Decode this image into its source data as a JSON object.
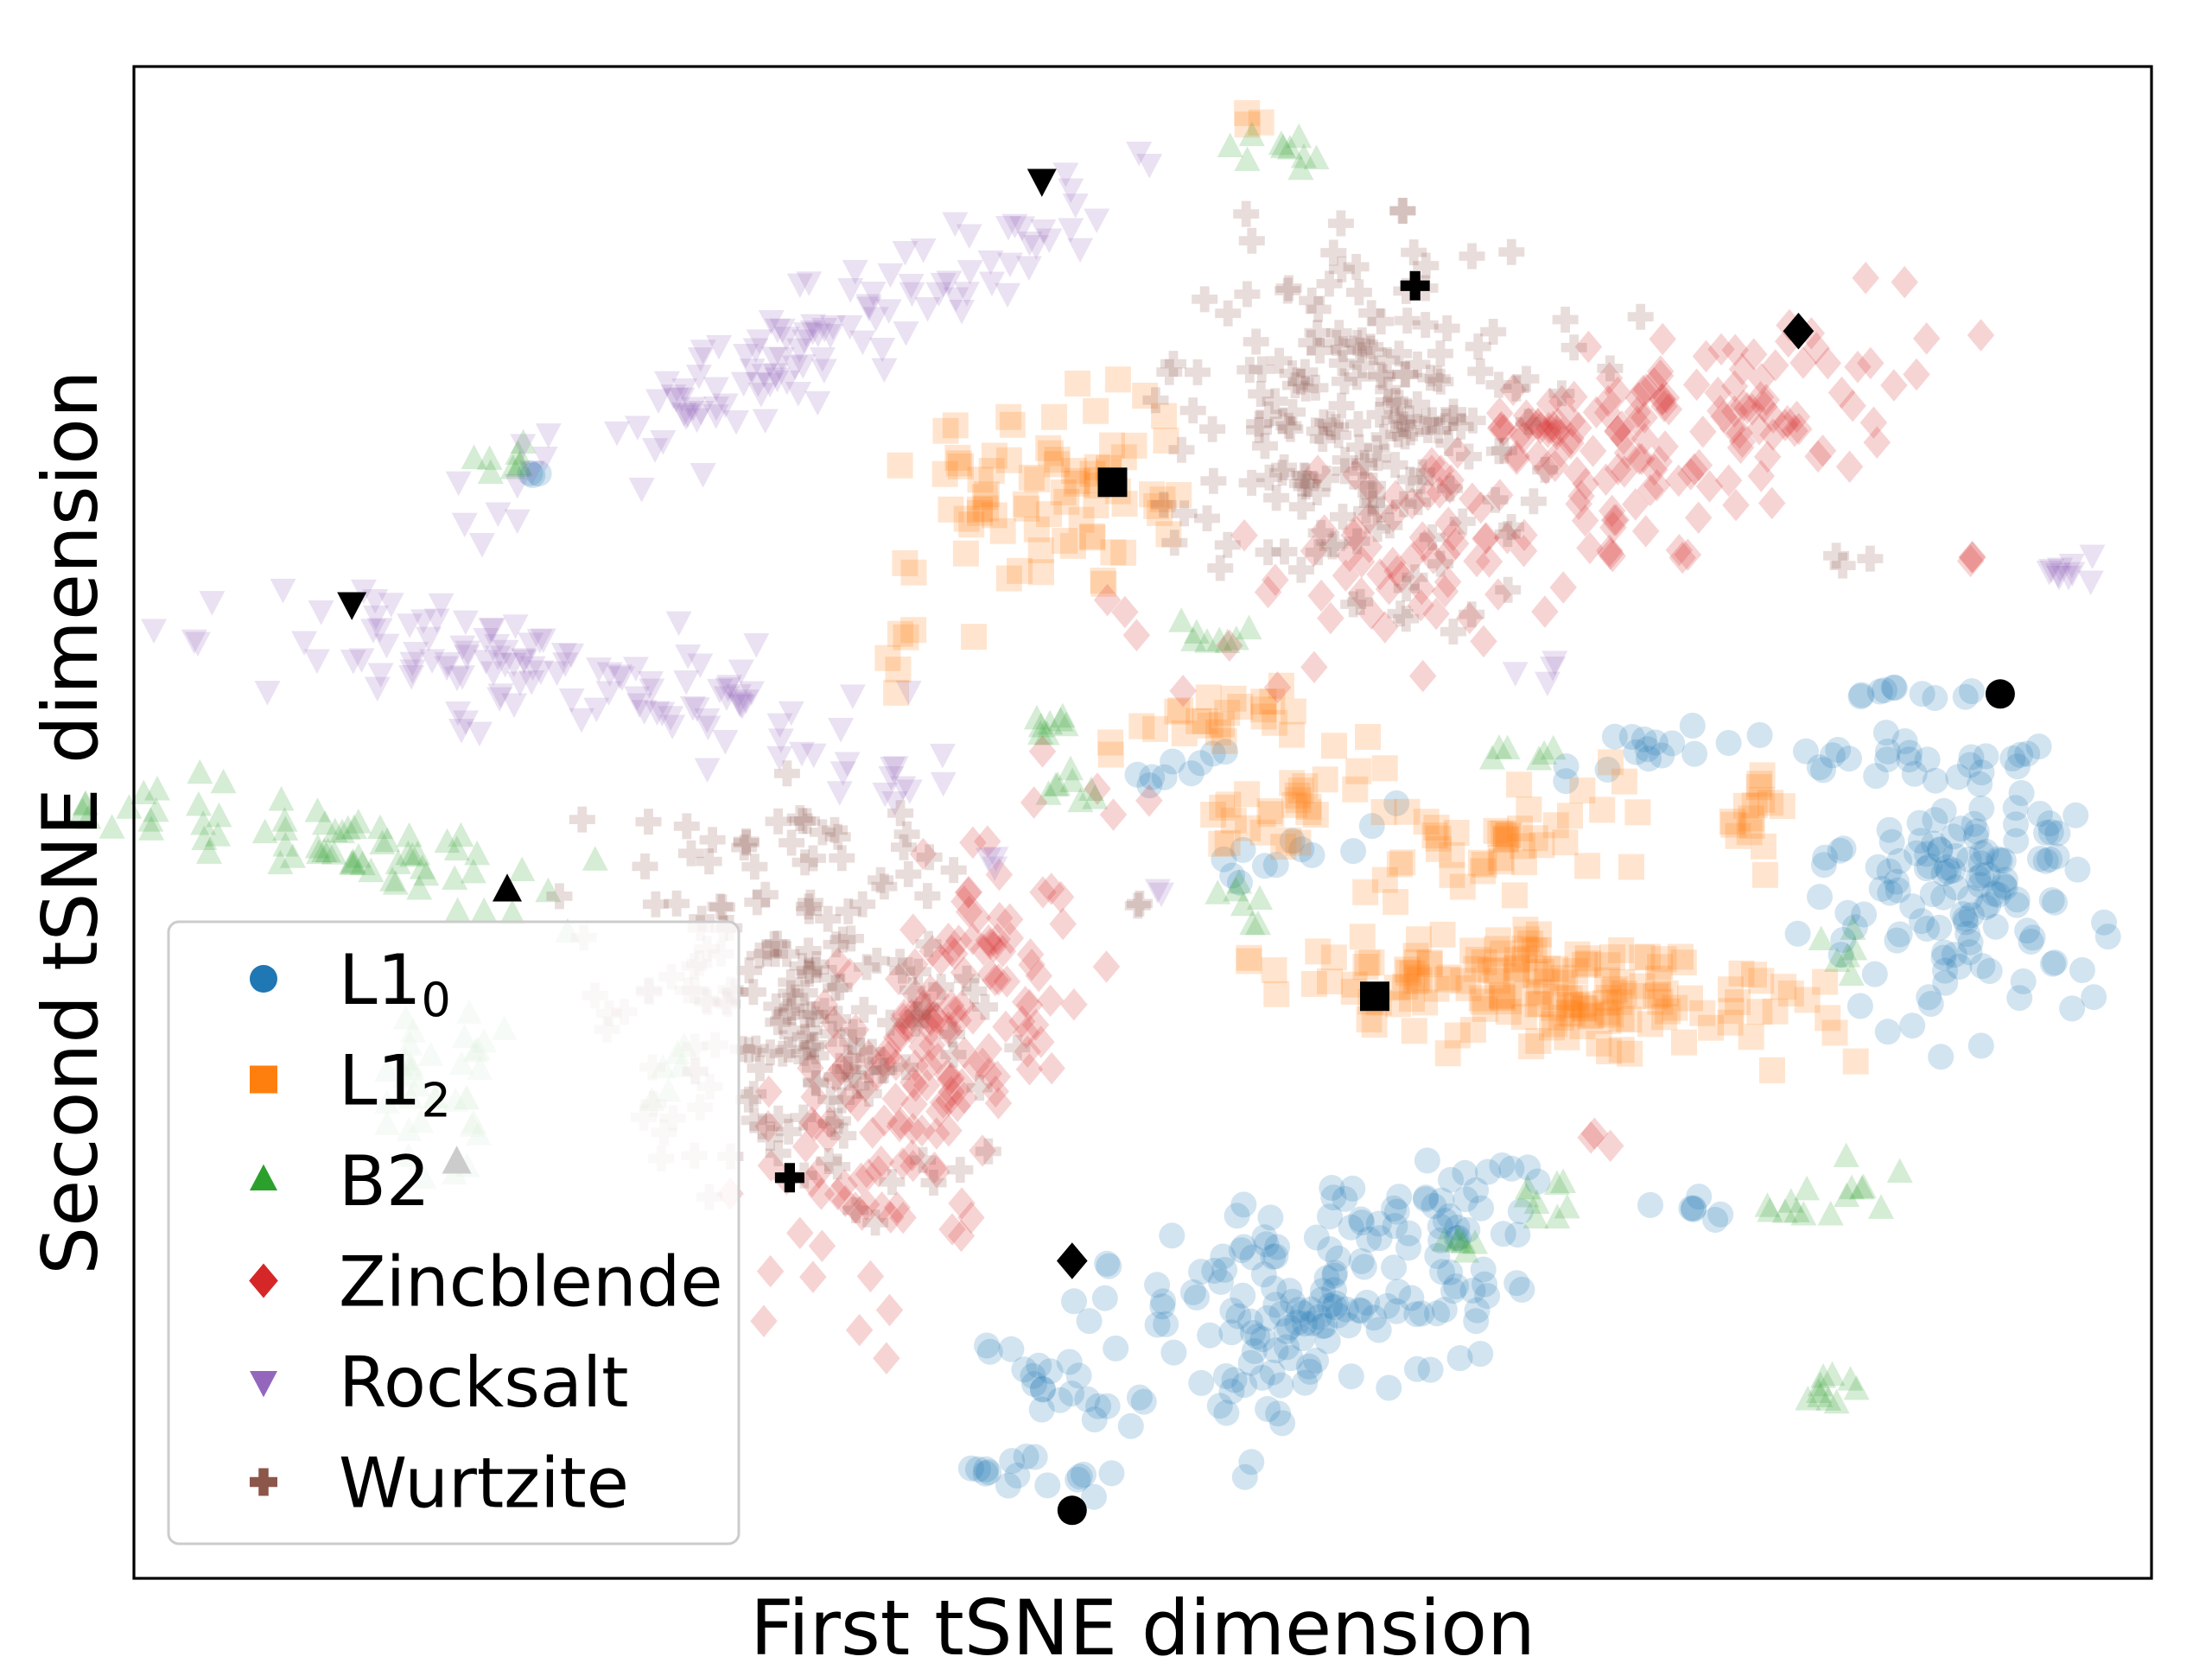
{
  "chart_data": {
    "type": "scatter",
    "title": "",
    "xlabel": "First tSNE dimension",
    "ylabel": "Second tSNE dimension",
    "xlim": [
      0,
      100
    ],
    "ylim": [
      0,
      100
    ],
    "ticks": "none",
    "grid": false,
    "legend_position": "bottom-left",
    "series": [
      {
        "name": "L1",
        "subscript": "0",
        "marker": "circle",
        "color": "#1f77b4",
        "clusters": [
          {
            "cx": 90.5,
            "cy": 44.5,
            "sx": 3.3,
            "sy": 4.8,
            "n": 130,
            "rot": -10
          },
          {
            "cx": 59.0,
            "cy": 18.0,
            "sx": 4.6,
            "sy": 3.4,
            "n": 150,
            "rot": 30
          },
          {
            "cx": 46.0,
            "cy": 12.5,
            "sx": 2.0,
            "sy": 0.9,
            "n": 22,
            "rot": -25
          },
          {
            "cx": 43.5,
            "cy": 7.0,
            "sx": 2.2,
            "sy": 0.6,
            "n": 16,
            "rot": -15
          },
          {
            "cx": 64.0,
            "cy": 24.5,
            "sx": 2.6,
            "sy": 1.0,
            "n": 20,
            "rot": -8
          },
          {
            "cx": 88.0,
            "cy": 54.5,
            "sx": 3.5,
            "sy": 0.7,
            "n": 22,
            "rot": 0
          },
          {
            "cx": 75.0,
            "cy": 54.5,
            "sx": 3.2,
            "sy": 0.7,
            "n": 16,
            "rot": 18
          },
          {
            "cx": 89.0,
            "cy": 58.5,
            "sx": 2.2,
            "sy": 0.4,
            "n": 10,
            "rot": 0
          },
          {
            "cx": 57.5,
            "cy": 48.0,
            "sx": 2.5,
            "sy": 0.8,
            "n": 12,
            "rot": 15
          },
          {
            "cx": 51.5,
            "cy": 53.0,
            "sx": 1.5,
            "sy": 0.7,
            "n": 9,
            "rot": 35
          },
          {
            "cx": 67.5,
            "cy": 27.0,
            "sx": 1.5,
            "sy": 0.4,
            "n": 7,
            "rot": -10
          },
          {
            "cx": 78.0,
            "cy": 24.5,
            "sx": 1.6,
            "sy": 0.4,
            "n": 7,
            "rot": 0
          },
          {
            "cx": 20.0,
            "cy": 73.0,
            "sx": 0.5,
            "sy": 0.4,
            "n": 3,
            "rot": 0
          }
        ],
        "reference_points": [
          [
            92.5,
            58.5
          ],
          [
            46.5,
            4.5
          ]
        ]
      },
      {
        "name": "L1",
        "subscript": "2",
        "marker": "square",
        "color": "#ff7f0e",
        "clusters": [
          {
            "cx": 70.0,
            "cy": 39.0,
            "sx": 6.8,
            "sy": 2.0,
            "n": 170,
            "rot": -4
          },
          {
            "cx": 67.5,
            "cy": 48.5,
            "sx": 3.2,
            "sy": 1.5,
            "n": 45,
            "rot": 18
          },
          {
            "cx": 45.0,
            "cy": 71.5,
            "sx": 3.5,
            "sy": 2.8,
            "n": 80,
            "rot": 35
          },
          {
            "cx": 57.5,
            "cy": 51.0,
            "sx": 2.5,
            "sy": 1.3,
            "n": 30,
            "rot": 38
          },
          {
            "cx": 53.5,
            "cy": 56.5,
            "sx": 2.6,
            "sy": 0.8,
            "n": 25,
            "rot": 15
          },
          {
            "cx": 80.5,
            "cy": 50.5,
            "sx": 1.0,
            "sy": 2.0,
            "n": 16,
            "rot": -20
          },
          {
            "cx": 38.0,
            "cy": 61.5,
            "sx": 0.6,
            "sy": 1.5,
            "n": 6,
            "rot": 0
          },
          {
            "cx": 55.5,
            "cy": 96.5,
            "sx": 0.5,
            "sy": 0.4,
            "n": 3,
            "rot": 0
          }
        ],
        "reference_points": [
          [
            61.5,
            38.5
          ],
          [
            48.5,
            72.5
          ]
        ]
      },
      {
        "name": "B2",
        "marker": "triangle-up",
        "color": "#2ca02c",
        "clusters": [
          {
            "cx": 10.0,
            "cy": 48.5,
            "sx": 5.5,
            "sy": 1.5,
            "n": 70,
            "rot": -16
          },
          {
            "cx": 16.0,
            "cy": 32.0,
            "sx": 1.5,
            "sy": 3.2,
            "n": 35,
            "rot": 0
          },
          {
            "cx": 56.5,
            "cy": 94.5,
            "sx": 1.3,
            "sy": 0.6,
            "n": 10,
            "rot": 0
          },
          {
            "cx": 18.5,
            "cy": 74.0,
            "sx": 1.0,
            "sy": 0.5,
            "n": 8,
            "rot": 0
          },
          {
            "cx": 53.5,
            "cy": 62.5,
            "sx": 0.9,
            "sy": 0.5,
            "n": 8,
            "rot": 0
          },
          {
            "cx": 45.5,
            "cy": 56.5,
            "sx": 1.0,
            "sy": 0.8,
            "n": 8,
            "rot": 0
          },
          {
            "cx": 47.0,
            "cy": 52.5,
            "sx": 1.0,
            "sy": 0.8,
            "n": 8,
            "rot": 0
          },
          {
            "cx": 54.5,
            "cy": 45.5,
            "sx": 0.6,
            "sy": 1.0,
            "n": 7,
            "rot": 0
          },
          {
            "cx": 69.0,
            "cy": 54.5,
            "sx": 1.0,
            "sy": 0.4,
            "n": 6,
            "rot": 0
          },
          {
            "cx": 70.5,
            "cy": 25.0,
            "sx": 1.0,
            "sy": 1.0,
            "n": 8,
            "rot": 0
          },
          {
            "cx": 82.5,
            "cy": 24.5,
            "sx": 1.5,
            "sy": 0.5,
            "n": 8,
            "rot": 0
          },
          {
            "cx": 86.0,
            "cy": 26.0,
            "sx": 0.8,
            "sy": 0.8,
            "n": 7,
            "rot": 0
          },
          {
            "cx": 84.0,
            "cy": 13.0,
            "sx": 0.8,
            "sy": 1.0,
            "n": 10,
            "rot": 0
          },
          {
            "cx": 66.0,
            "cy": 22.0,
            "sx": 1.2,
            "sy": 0.5,
            "n": 6,
            "rot": 0
          },
          {
            "cx": 85.0,
            "cy": 42.0,
            "sx": 0.8,
            "sy": 1.0,
            "n": 6,
            "rot": 0
          },
          {
            "cx": 27.5,
            "cy": 33.0,
            "sx": 1.0,
            "sy": 1.2,
            "n": 6,
            "rot": 0
          }
        ],
        "reference_points": [
          [
            18.5,
            45.5
          ],
          [
            16.0,
            27.5
          ]
        ]
      },
      {
        "name": "Zincblende",
        "marker": "diamond",
        "color": "#d62728",
        "clusters": [
          {
            "cx": 39.5,
            "cy": 35.5,
            "sx": 2.7,
            "sy": 8.8,
            "n": 180,
            "rot": -22
          },
          {
            "cx": 70.5,
            "cy": 72.5,
            "sx": 10.0,
            "sy": 3.2,
            "n": 180,
            "rot": 32
          },
          {
            "cx": 72.0,
            "cy": 77.0,
            "sx": 4.0,
            "sy": 1.2,
            "n": 30,
            "rot": 20
          },
          {
            "cx": 82.0,
            "cy": 76.5,
            "sx": 1.2,
            "sy": 1.2,
            "n": 10,
            "rot": 0
          },
          {
            "cx": 38.0,
            "cy": 24.0,
            "sx": 0.6,
            "sy": 0.5,
            "n": 4,
            "rot": 0
          },
          {
            "cx": 72.5,
            "cy": 29.0,
            "sx": 0.5,
            "sy": 0.5,
            "n": 3,
            "rot": 0
          },
          {
            "cx": 76.5,
            "cy": 67.5,
            "sx": 0.5,
            "sy": 0.4,
            "n": 3,
            "rot": 0
          },
          {
            "cx": 91.0,
            "cy": 67.5,
            "sx": 0.4,
            "sy": 0.4,
            "n": 3,
            "rot": 0
          }
        ],
        "reference_points": [
          [
            46.5,
            21.0
          ],
          [
            82.5,
            82.5
          ]
        ]
      },
      {
        "name": "Rocksalt",
        "marker": "triangle-down",
        "color": "#9467bd",
        "clusters": [
          {
            "cx": 33.5,
            "cy": 81.5,
            "sx": 9.0,
            "sy": 1.8,
            "n": 120,
            "rot": 33
          },
          {
            "cx": 20.5,
            "cy": 60.0,
            "sx": 9.0,
            "sy": 2.0,
            "n": 120,
            "rot": -12
          },
          {
            "cx": 38.0,
            "cy": 52.5,
            "sx": 1.5,
            "sy": 0.8,
            "n": 10,
            "rot": 0
          },
          {
            "cx": 95.5,
            "cy": 66.5,
            "sx": 1.0,
            "sy": 0.6,
            "n": 10,
            "rot": 0
          },
          {
            "cx": 69.5,
            "cy": 60.0,
            "sx": 0.7,
            "sy": 0.4,
            "n": 4,
            "rot": 0
          },
          {
            "cx": 42.5,
            "cy": 47.5,
            "sx": 0.4,
            "sy": 0.8,
            "n": 3,
            "rot": 0
          },
          {
            "cx": 51.0,
            "cy": 45.5,
            "sx": 0.5,
            "sy": 0.4,
            "n": 2,
            "rot": 0
          }
        ],
        "reference_points": [
          [
            45.0,
            92.5
          ],
          [
            10.8,
            64.5
          ]
        ]
      },
      {
        "name": "Wurtzite",
        "marker": "plus",
        "color": "#8c564b",
        "clusters": [
          {
            "cx": 61.5,
            "cy": 77.5,
            "sx": 4.5,
            "sy": 5.5,
            "n": 190,
            "rot": -20
          },
          {
            "cx": 33.0,
            "cy": 38.0,
            "sx": 4.2,
            "sy": 6.5,
            "n": 190,
            "rot": 15
          },
          {
            "cx": 58.0,
            "cy": 72.0,
            "sx": 0.5,
            "sy": 1.5,
            "n": 6,
            "rot": 0
          },
          {
            "cx": 33.5,
            "cy": 50.0,
            "sx": 0.6,
            "sy": 0.5,
            "n": 4,
            "rot": 0
          },
          {
            "cx": 49.5,
            "cy": 44.5,
            "sx": 0.3,
            "sy": 0.3,
            "n": 2,
            "rot": 0
          },
          {
            "cx": 85.5,
            "cy": 67.5,
            "sx": 0.5,
            "sy": 0.4,
            "n": 3,
            "rot": 0
          }
        ],
        "reference_points": [
          [
            63.5,
            85.5
          ],
          [
            32.5,
            26.5
          ]
        ]
      }
    ]
  }
}
